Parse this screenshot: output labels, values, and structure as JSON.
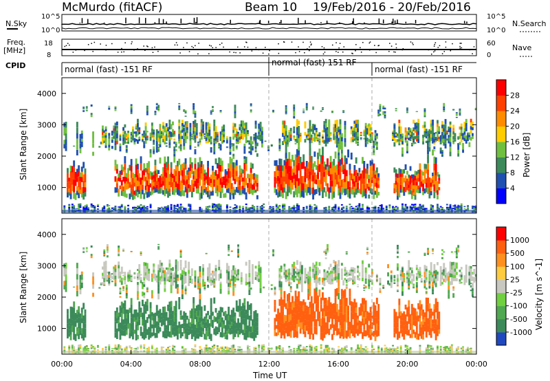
{
  "header": {
    "station": "McMurdo (fitACF)",
    "beam": "Beam 10",
    "date_range": "19/Feb/2016 - 20/Feb/2016"
  },
  "summary": {
    "nsky_label": "N.Sky",
    "nsearch_label": "N.Search",
    "nsky_ticks": [
      "10^5",
      "10^0"
    ],
    "nsearch_ticks": [
      "10^5",
      "10^0"
    ],
    "freq_label": "Freq.",
    "freq_unit": "[MHz]",
    "freq_ticks": [
      "18",
      "8"
    ],
    "nave_label": "Nave",
    "nave_ticks": [
      "60",
      "0"
    ],
    "cpid_label": "CPID",
    "cpid_segments": [
      {
        "label": "normal (fast) -151 RF",
        "start_hour": 0
      },
      {
        "label": "normal (fast) 151 RF",
        "start_hour": 12
      },
      {
        "label": "normal (fast) -151 RF",
        "start_hour": 18
      }
    ]
  },
  "chart_data": [
    {
      "type": "heatmap",
      "name": "power",
      "ylabel": "Slant Range [km]",
      "ylim": [
        180,
        4500
      ],
      "yticks": [
        "1000",
        "2000",
        "3000",
        "4000"
      ],
      "xlim": [
        0,
        24
      ],
      "colorbar_label": "Power [dB]",
      "colorbar_ticks": [
        "4",
        "8",
        "12",
        "16",
        "20",
        "24",
        "28"
      ],
      "colors": [
        "#0000ff",
        "#2050b0",
        "#3c8a5a",
        "#70c040",
        "#ffcc00",
        "#ff8c00",
        "#ff4000",
        "#ff0000"
      ]
    },
    {
      "type": "heatmap",
      "name": "velocity",
      "ylabel": "Slant Range [km]",
      "ylim": [
        180,
        4500
      ],
      "yticks": [
        "1000",
        "2000",
        "3000",
        "4000"
      ],
      "xlim": [
        0,
        24
      ],
      "xlabel": "Time UT",
      "xticks": [
        "00:00",
        "04:00",
        "08:00",
        "12:00",
        "16:00",
        "20:00",
        "00:00"
      ],
      "colorbar_label": "Velocity [m s^-1]",
      "colorbar_ticks": [
        "1000",
        "500",
        "100",
        "25",
        "-25",
        "-100",
        "-500",
        "-1000"
      ],
      "colors": [
        "#2048c0",
        "#3c8a5a",
        "#50a850",
        "#70d040",
        "#c8c8c0",
        "#ffcc40",
        "#ff9020",
        "#ff6010",
        "#ff0000"
      ]
    }
  ]
}
